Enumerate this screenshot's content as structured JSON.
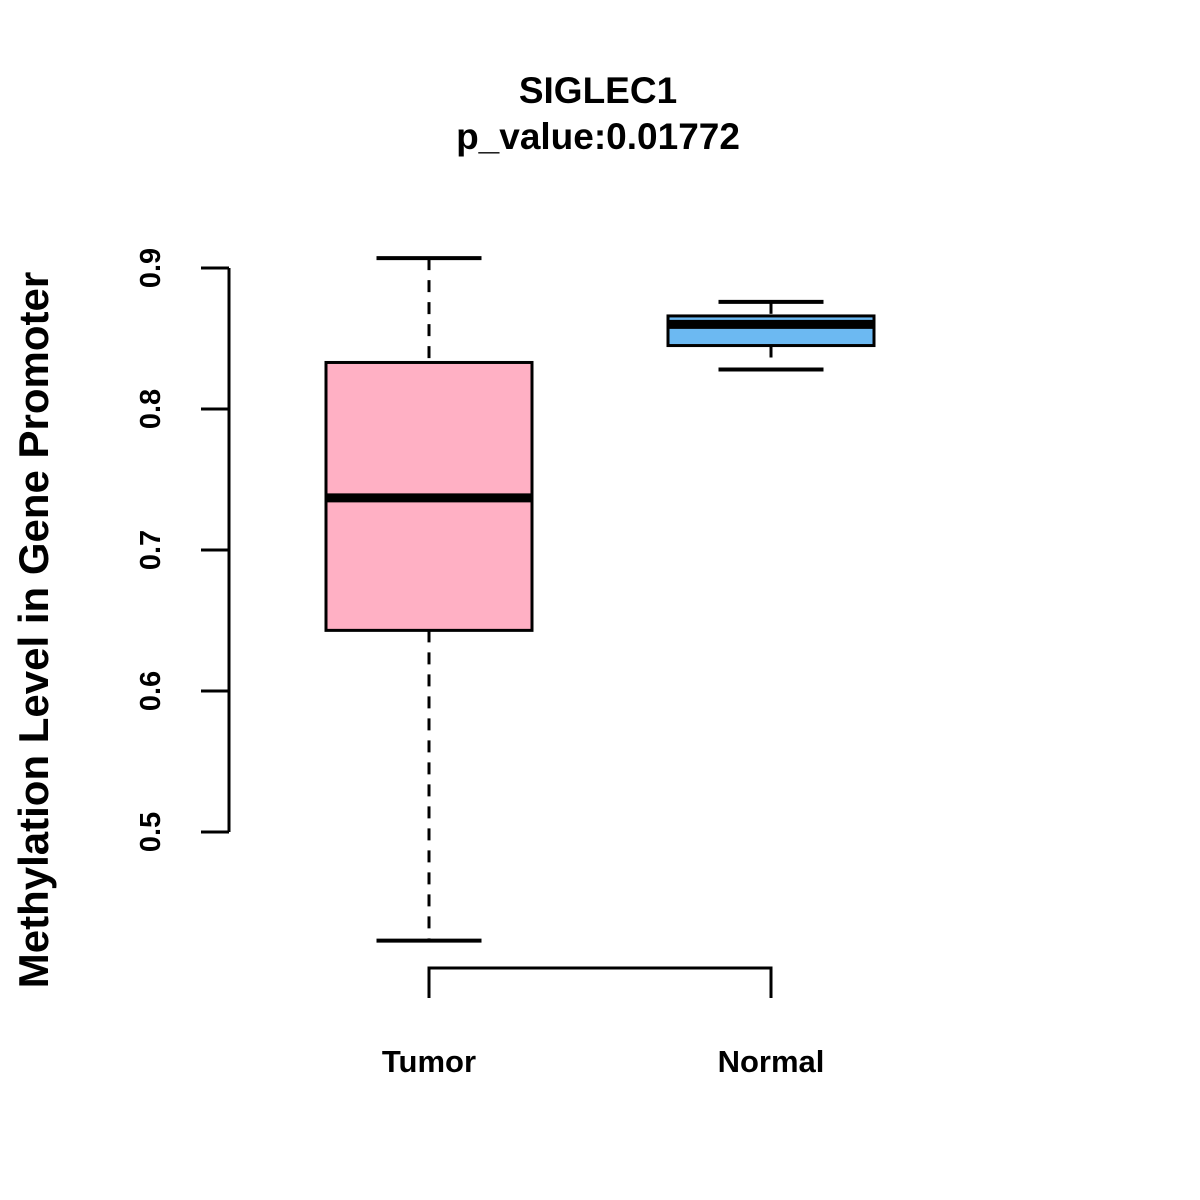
{
  "chart_data": {
    "type": "boxplot",
    "title": "SIGLEC1",
    "subtitle": "p_value:0.01772",
    "ylabel": "Methylation Level in Gene Promoter",
    "xlabel": "",
    "categories": [
      "Tumor",
      "Normal"
    ],
    "ylim": [
      0.5,
      0.9
    ],
    "y_ticks": [
      "0.5",
      "0.6",
      "0.7",
      "0.8",
      "0.9"
    ],
    "grid": false,
    "legend": "none",
    "background_color": "#FFFFFF",
    "stroke_color": "#000000",
    "series": [
      {
        "name": "Tumor",
        "box_color": "#FFB0C4",
        "whisker_low": 0.423,
        "q1": 0.643,
        "median": 0.737,
        "q3": 0.833,
        "whisker_high": 0.907
      },
      {
        "name": "Normal",
        "box_color": "#6CB9F2",
        "whisker_low": 0.828,
        "q1": 0.845,
        "median": 0.86,
        "q3": 0.866,
        "whisker_high": 0.876
      }
    ]
  }
}
